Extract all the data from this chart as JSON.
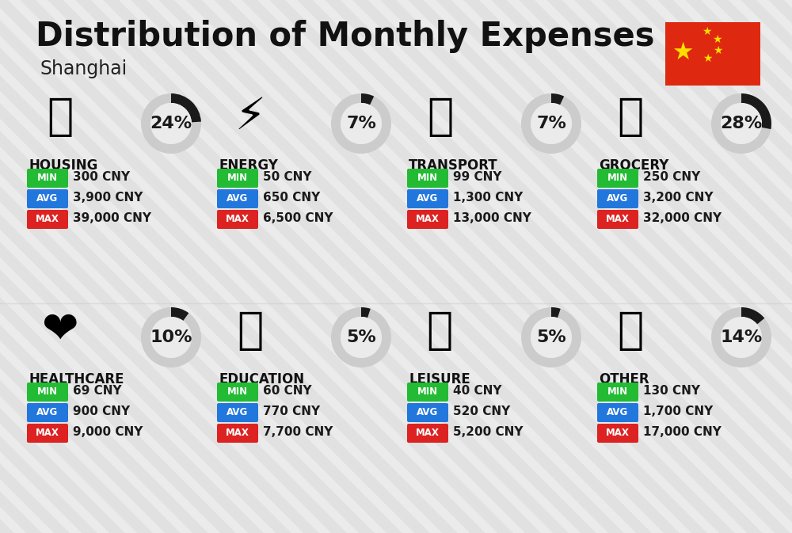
{
  "title": "Distribution of Monthly Expenses",
  "subtitle": "Shanghai",
  "bg_color": "#ebebeb",
  "categories": [
    {
      "name": "HOUSING",
      "pct": 24,
      "min_val": "300 CNY",
      "avg_val": "3,900 CNY",
      "max_val": "39,000 CNY",
      "row": 0,
      "col": 0
    },
    {
      "name": "ENERGY",
      "pct": 7,
      "min_val": "50 CNY",
      "avg_val": "650 CNY",
      "max_val": "6,500 CNY",
      "row": 0,
      "col": 1
    },
    {
      "name": "TRANSPORT",
      "pct": 7,
      "min_val": "99 CNY",
      "avg_val": "1,300 CNY",
      "max_val": "13,000 CNY",
      "row": 0,
      "col": 2
    },
    {
      "name": "GROCERY",
      "pct": 28,
      "min_val": "250 CNY",
      "avg_val": "3,200 CNY",
      "max_val": "32,000 CNY",
      "row": 0,
      "col": 3
    },
    {
      "name": "HEALTHCARE",
      "pct": 10,
      "min_val": "69 CNY",
      "avg_val": "900 CNY",
      "max_val": "9,000 CNY",
      "row": 1,
      "col": 0
    },
    {
      "name": "EDUCATION",
      "pct": 5,
      "min_val": "60 CNY",
      "avg_val": "770 CNY",
      "max_val": "7,700 CNY",
      "row": 1,
      "col": 1
    },
    {
      "name": "LEISURE",
      "pct": 5,
      "min_val": "40 CNY",
      "avg_val": "520 CNY",
      "max_val": "5,200 CNY",
      "row": 1,
      "col": 2
    },
    {
      "name": "OTHER",
      "pct": 14,
      "min_val": "130 CNY",
      "avg_val": "1,700 CNY",
      "max_val": "17,000 CNY",
      "row": 1,
      "col": 3
    }
  ],
  "min_color": "#22bb33",
  "avg_color": "#2277dd",
  "max_color": "#dd2222",
  "donut_bg": "#cccccc",
  "donut_fg": "#1a1a1a",
  "title_fontsize": 30,
  "subtitle_fontsize": 17,
  "cat_fontsize": 12,
  "val_fontsize": 11,
  "pct_fontsize": 16,
  "stripe_color": "#d8d8d8",
  "flag_red": "#de2910",
  "flag_star": "#ffde00"
}
